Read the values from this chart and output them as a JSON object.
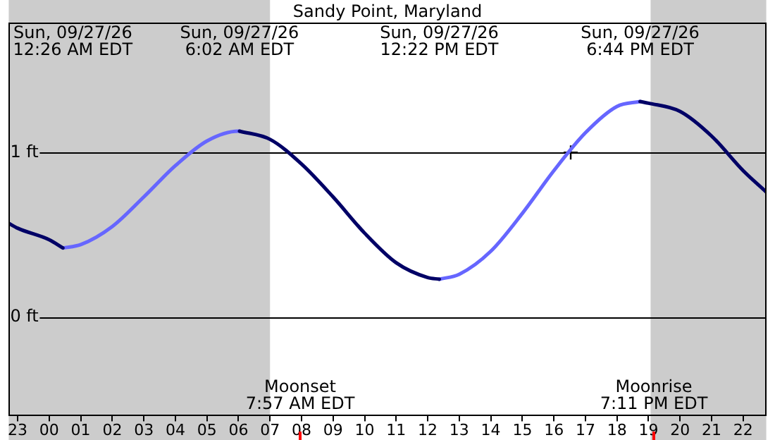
{
  "chart_data": {
    "type": "line",
    "title": "Sandy Point, Maryland",
    "x": [
      "--09-26T22:43",
      "--09-26T23:00",
      "--09-27T00:00",
      "--09-27T00:26",
      "--09-27T01:00",
      "--09-27T02:00",
      "--09-27T03:00",
      "--09-27T04:00",
      "--09-27T05:00",
      "--09-27T06:00",
      "--09-27T06:02",
      "--09-27T07:00",
      "--09-27T08:00",
      "--09-27T09:00",
      "--09-27T10:00",
      "--09-27T11:00",
      "--09-27T12:00",
      "--09-27T12:22",
      "--09-27T13:00",
      "--09-27T14:00",
      "--09-27T15:00",
      "--09-27T16:00",
      "--09-27T17:00",
      "--09-27T18:00",
      "--09-27T18:44",
      "--09-27T19:00",
      "--09-27T20:00",
      "--09-27T21:00",
      "--09-27T22:00",
      "--09-27T22:44"
    ],
    "series": [
      {
        "color": "#000066",
        "values": [
          0.57,
          0.54,
          0.47,
          0.42,
          null,
          null,
          null,
          null,
          null,
          null,
          1.13,
          1.08,
          0.93,
          0.73,
          0.51,
          0.33,
          0.24,
          0.23,
          null,
          null,
          null,
          null,
          null,
          null,
          1.31,
          1.3,
          1.25,
          1.1,
          0.89,
          0.76
        ]
      },
      {
        "color": "#6666ff",
        "values": [
          null,
          null,
          null,
          0.42,
          0.44,
          0.55,
          0.73,
          0.92,
          1.07,
          1.13,
          1.13,
          null,
          null,
          null,
          null,
          null,
          null,
          0.23,
          0.26,
          0.4,
          0.63,
          0.89,
          1.12,
          1.28,
          1.31,
          null,
          null,
          null,
          null,
          null
        ]
      },
      {
        "type": "scatter",
        "color": "#000000",
        "marker": "cross",
        "x": [
          "--09-27T16:32"
        ],
        "values": [
          1.0
        ]
      }
    ],
    "xlim": [
      "--09-26T22:43",
      "--09-27T22:44"
    ],
    "xticks": [
      {
        "value": "--09-26T23:00",
        "label": "23"
      },
      {
        "value": "--09-27T00:00",
        "label": "00"
      },
      {
        "value": "--09-27T01:00",
        "label": "01"
      },
      {
        "value": "--09-27T02:00",
        "label": "02"
      },
      {
        "value": "--09-27T03:00",
        "label": "03"
      },
      {
        "value": "--09-27T04:00",
        "label": "04"
      },
      {
        "value": "--09-27T05:00",
        "label": "05"
      },
      {
        "value": "--09-27T06:00",
        "label": "06"
      },
      {
        "value": "--09-27T07:00",
        "label": "07"
      },
      {
        "value": "--09-27T08:00",
        "label": "08"
      },
      {
        "value": "--09-27T09:00",
        "label": "09"
      },
      {
        "value": "--09-27T10:00",
        "label": "10"
      },
      {
        "value": "--09-27T11:00",
        "label": "11"
      },
      {
        "value": "--09-27T12:00",
        "label": "12"
      },
      {
        "value": "--09-27T13:00",
        "label": "13"
      },
      {
        "value": "--09-27T14:00",
        "label": "14"
      },
      {
        "value": "--09-27T15:00",
        "label": "15"
      },
      {
        "value": "--09-27T16:00",
        "label": "16"
      },
      {
        "value": "--09-27T17:00",
        "label": "17"
      },
      {
        "value": "--09-27T18:00",
        "label": "18"
      },
      {
        "value": "--09-27T19:00",
        "label": "19"
      },
      {
        "value": "--09-27T20:00",
        "label": "20"
      },
      {
        "value": "--09-27T21:00",
        "label": "21"
      },
      {
        "value": "--09-27T22:00",
        "label": "22"
      }
    ],
    "ylim": [
      -0.6,
      1.79
    ],
    "yticks": [
      {
        "value": 0,
        "label": "0 ft"
      },
      {
        "value": 1,
        "label": "1 ft"
      }
    ],
    "grid": "y",
    "legend": false,
    "marker": "none",
    "bands": [
      {
        "axis": "x",
        "from": "--09-26T22:43",
        "to": "--09-27T07:00",
        "color": "#cccccc"
      },
      {
        "axis": "x",
        "from": "--09-27T19:04",
        "to": "--09-27T22:44",
        "color": "#cccccc"
      }
    ],
    "annotations": [
      "Sun, 09/27/26\n12:26 AM EDT",
      "Sun, 09/27/26\n6:02 AM EDT",
      "Sun, 09/27/26\n12:22 PM EDT",
      "Sun, 09/27/26\n6:44 PM EDT"
    ],
    "ref_lines": [
      {
        "axis": "x",
        "value": "--09-27T07:57",
        "label": "Moonset\n7:57 AM EDT",
        "color": "#ff0000"
      },
      {
        "axis": "x",
        "value": "--09-27T19:11",
        "label": "Moonrise\n7:11 PM EDT",
        "color": "#ff0000"
      }
    ]
  }
}
